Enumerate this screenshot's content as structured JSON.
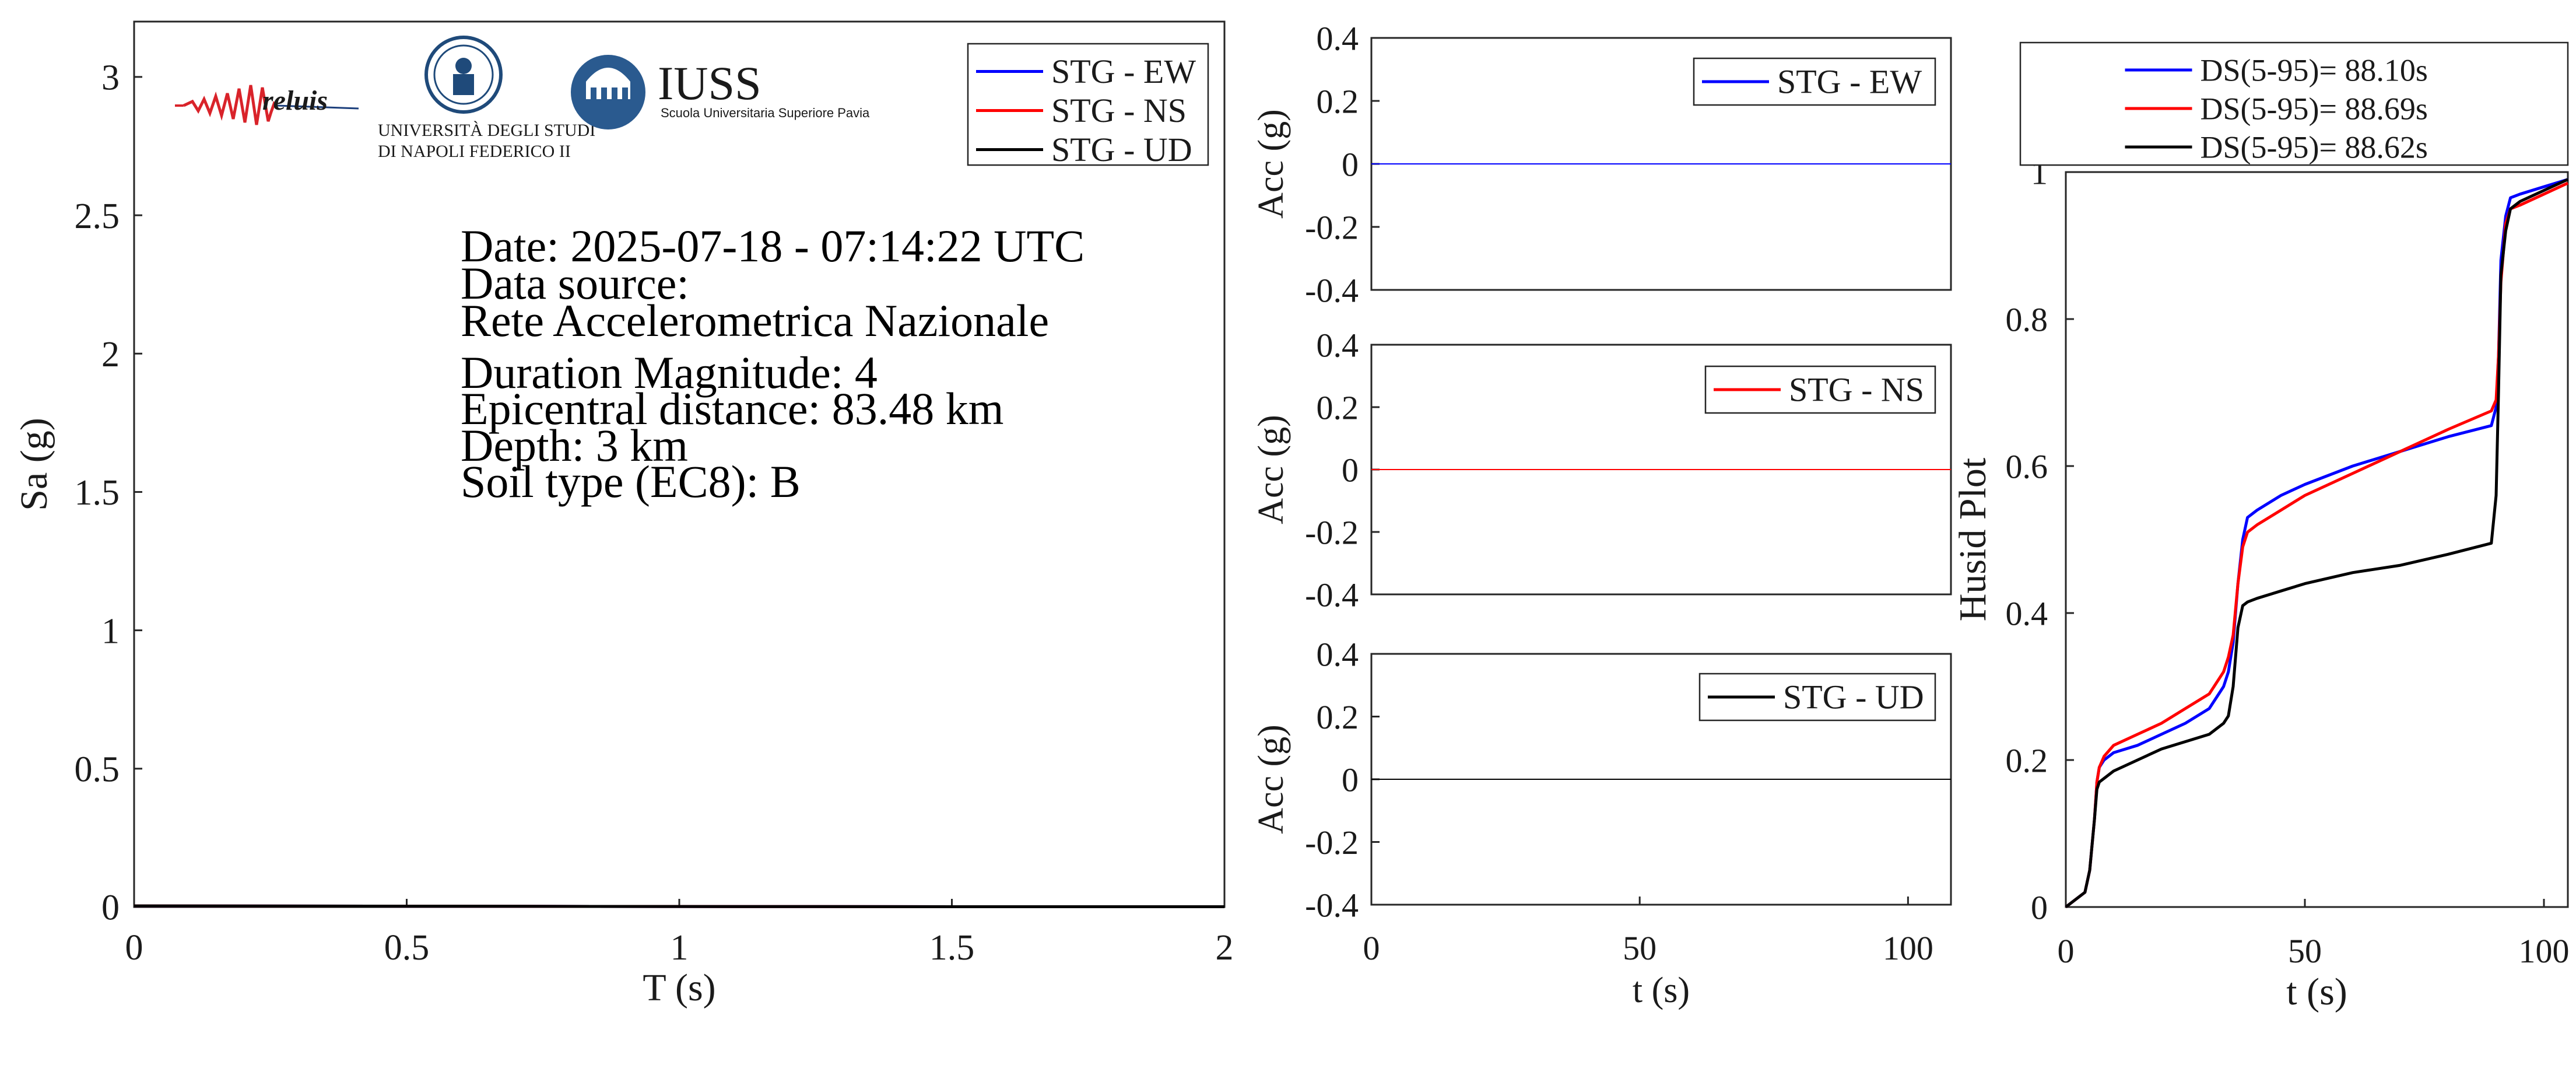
{
  "logos": {
    "reluis": "reluis",
    "unina_line1": "UNIVERSITÀ DEGLI STUDI",
    "unina_line2": "DI NAPOLI FEDERICO II",
    "iuss": "IUSS",
    "iuss_sub": "Scuola Universitaria Superiore Pavia"
  },
  "info": {
    "date": "Date: 2025-07-18 - 07:14:22 UTC",
    "source_label": "Data source:",
    "source": "Rete Accelerometrica Nazionale",
    "magnitude": "Duration Magnitude: 4",
    "distance": "Epicentral distance: 83.48 km",
    "depth": "Depth: 3 km",
    "soil": "Soil type (EC8): B"
  },
  "colors": {
    "ew": "#0000ff",
    "ns": "#ff0000",
    "ud": "#000000"
  },
  "chart_data": [
    {
      "id": "spectrum",
      "type": "line",
      "xlabel": "T (s)",
      "ylabel": "Sa (g)",
      "xlim": [
        0,
        2
      ],
      "ylim": [
        0,
        3.2
      ],
      "xticks": [
        0,
        0.5,
        1,
        1.5,
        2
      ],
      "xtick_labels": [
        "0",
        "0.5",
        "1",
        "1.5",
        "2"
      ],
      "yticks": [
        0,
        0.5,
        1,
        1.5,
        2,
        2.5,
        3
      ],
      "ytick_labels": [
        "0",
        "0.5",
        "1",
        "1.5",
        "2",
        "2.5",
        "3"
      ],
      "legend": "top-right",
      "series": [
        {
          "name": "STG - EW",
          "color": "#0000ff",
          "x": [
            0,
            0.5,
            1,
            1.5,
            2
          ],
          "y": [
            0.004,
            0.003,
            0.002,
            0.001,
            0.001
          ]
        },
        {
          "name": "STG - NS",
          "color": "#ff0000",
          "x": [
            0,
            0.5,
            1,
            1.5,
            2
          ],
          "y": [
            0.004,
            0.003,
            0.002,
            0.001,
            0.001
          ]
        },
        {
          "name": "STG - UD",
          "color": "#000000",
          "x": [
            0,
            0.5,
            1,
            1.5,
            2
          ],
          "y": [
            0.004,
            0.003,
            0.002,
            0.001,
            0.001
          ]
        }
      ]
    },
    {
      "id": "acc-ew",
      "type": "line",
      "xlabel": "",
      "ylabel": "Acc (g)",
      "xlim": [
        0,
        108
      ],
      "ylim": [
        -0.4,
        0.4
      ],
      "yticks": [
        0.4,
        0.2,
        0,
        -0.2,
        -0.4
      ],
      "ytick_labels": [
        "0.4",
        "0.2",
        "0",
        "-0.2",
        "-0.4"
      ],
      "legend": "top-right",
      "series": [
        {
          "name": "STG - EW",
          "color": "#0000ff",
          "x": [
            0,
            108
          ],
          "y": [
            0,
            0
          ]
        }
      ]
    },
    {
      "id": "acc-ns",
      "type": "line",
      "xlabel": "",
      "ylabel": "Acc (g)",
      "xlim": [
        0,
        108
      ],
      "ylim": [
        -0.4,
        0.4
      ],
      "yticks": [
        0.4,
        0.2,
        0,
        -0.2,
        -0.4
      ],
      "ytick_labels": [
        "0.4",
        "0.2",
        "0",
        "-0.2",
        "-0.4"
      ],
      "legend": "top-right",
      "series": [
        {
          "name": "STG - NS",
          "color": "#ff0000",
          "x": [
            0,
            108
          ],
          "y": [
            0,
            0
          ]
        }
      ]
    },
    {
      "id": "acc-ud",
      "type": "line",
      "xlabel": "t (s)",
      "ylabel": "Acc (g)",
      "xlim": [
        0,
        108
      ],
      "ylim": [
        -0.4,
        0.4
      ],
      "xticks": [
        0,
        50,
        100
      ],
      "xtick_labels": [
        "0",
        "50",
        "100"
      ],
      "yticks": [
        0.4,
        0.2,
        0,
        -0.2,
        -0.4
      ],
      "ytick_labels": [
        "0.4",
        "0.2",
        "0",
        "-0.2",
        "-0.4"
      ],
      "legend": "top-right",
      "series": [
        {
          "name": "STG - UD",
          "color": "#000000",
          "x": [
            0,
            108
          ],
          "y": [
            0,
            0
          ]
        }
      ]
    },
    {
      "id": "husid",
      "type": "line",
      "xlabel": "t (s)",
      "ylabel": "Husid Plot",
      "xlim": [
        0,
        105
      ],
      "ylim": [
        0,
        1
      ],
      "xticks": [
        0,
        50,
        100
      ],
      "xtick_labels": [
        "0",
        "50",
        "100"
      ],
      "yticks": [
        0,
        0.2,
        0.4,
        0.6,
        0.8,
        1
      ],
      "ytick_labels": [
        "0",
        "0.2",
        "0.4",
        "0.6",
        "0.8",
        "1"
      ],
      "legend": "top (outside)",
      "series": [
        {
          "name": "DS(5-95)= 88.10s",
          "color": "#0000ff",
          "x": [
            0,
            4,
            5,
            6,
            6.5,
            7,
            8,
            10,
            15,
            20,
            25,
            30,
            33,
            34,
            35,
            36,
            37,
            38,
            40,
            45,
            50,
            60,
            70,
            80,
            89,
            90,
            90.5,
            91,
            92,
            93,
            95,
            100,
            105
          ],
          "y": [
            0,
            0.02,
            0.05,
            0.12,
            0.17,
            0.19,
            0.2,
            0.21,
            0.22,
            0.235,
            0.25,
            0.27,
            0.3,
            0.32,
            0.36,
            0.44,
            0.5,
            0.53,
            0.54,
            0.56,
            0.575,
            0.6,
            0.62,
            0.64,
            0.655,
            0.68,
            0.75,
            0.88,
            0.94,
            0.965,
            0.97,
            0.98,
            0.99
          ]
        },
        {
          "name": "DS(5-95)= 88.69s",
          "color": "#ff0000",
          "x": [
            0,
            4,
            5,
            6,
            6.5,
            7,
            8,
            10,
            15,
            20,
            25,
            30,
            33,
            34,
            35,
            36,
            37,
            38,
            40,
            45,
            50,
            60,
            70,
            80,
            89,
            90,
            90.5,
            91,
            92,
            93,
            95,
            100,
            105
          ],
          "y": [
            0,
            0.02,
            0.05,
            0.12,
            0.17,
            0.19,
            0.205,
            0.22,
            0.235,
            0.25,
            0.27,
            0.29,
            0.32,
            0.34,
            0.37,
            0.44,
            0.49,
            0.51,
            0.52,
            0.54,
            0.56,
            0.59,
            0.62,
            0.65,
            0.675,
            0.69,
            0.75,
            0.85,
            0.93,
            0.95,
            0.955,
            0.97,
            0.985
          ]
        },
        {
          "name": "DS(5-95)= 88.62s",
          "color": "#000000",
          "x": [
            0,
            4,
            5,
            6,
            6.5,
            7,
            8,
            10,
            15,
            20,
            25,
            30,
            33,
            34,
            35,
            36,
            37,
            38,
            40,
            45,
            50,
            60,
            70,
            80,
            89,
            90,
            90.5,
            91,
            92,
            93,
            95,
            100,
            105
          ],
          "y": [
            0,
            0.02,
            0.05,
            0.12,
            0.16,
            0.17,
            0.175,
            0.185,
            0.2,
            0.215,
            0.225,
            0.235,
            0.25,
            0.26,
            0.3,
            0.38,
            0.41,
            0.415,
            0.42,
            0.43,
            0.44,
            0.455,
            0.465,
            0.48,
            0.495,
            0.56,
            0.7,
            0.86,
            0.92,
            0.95,
            0.96,
            0.975,
            0.99
          ]
        }
      ]
    }
  ]
}
